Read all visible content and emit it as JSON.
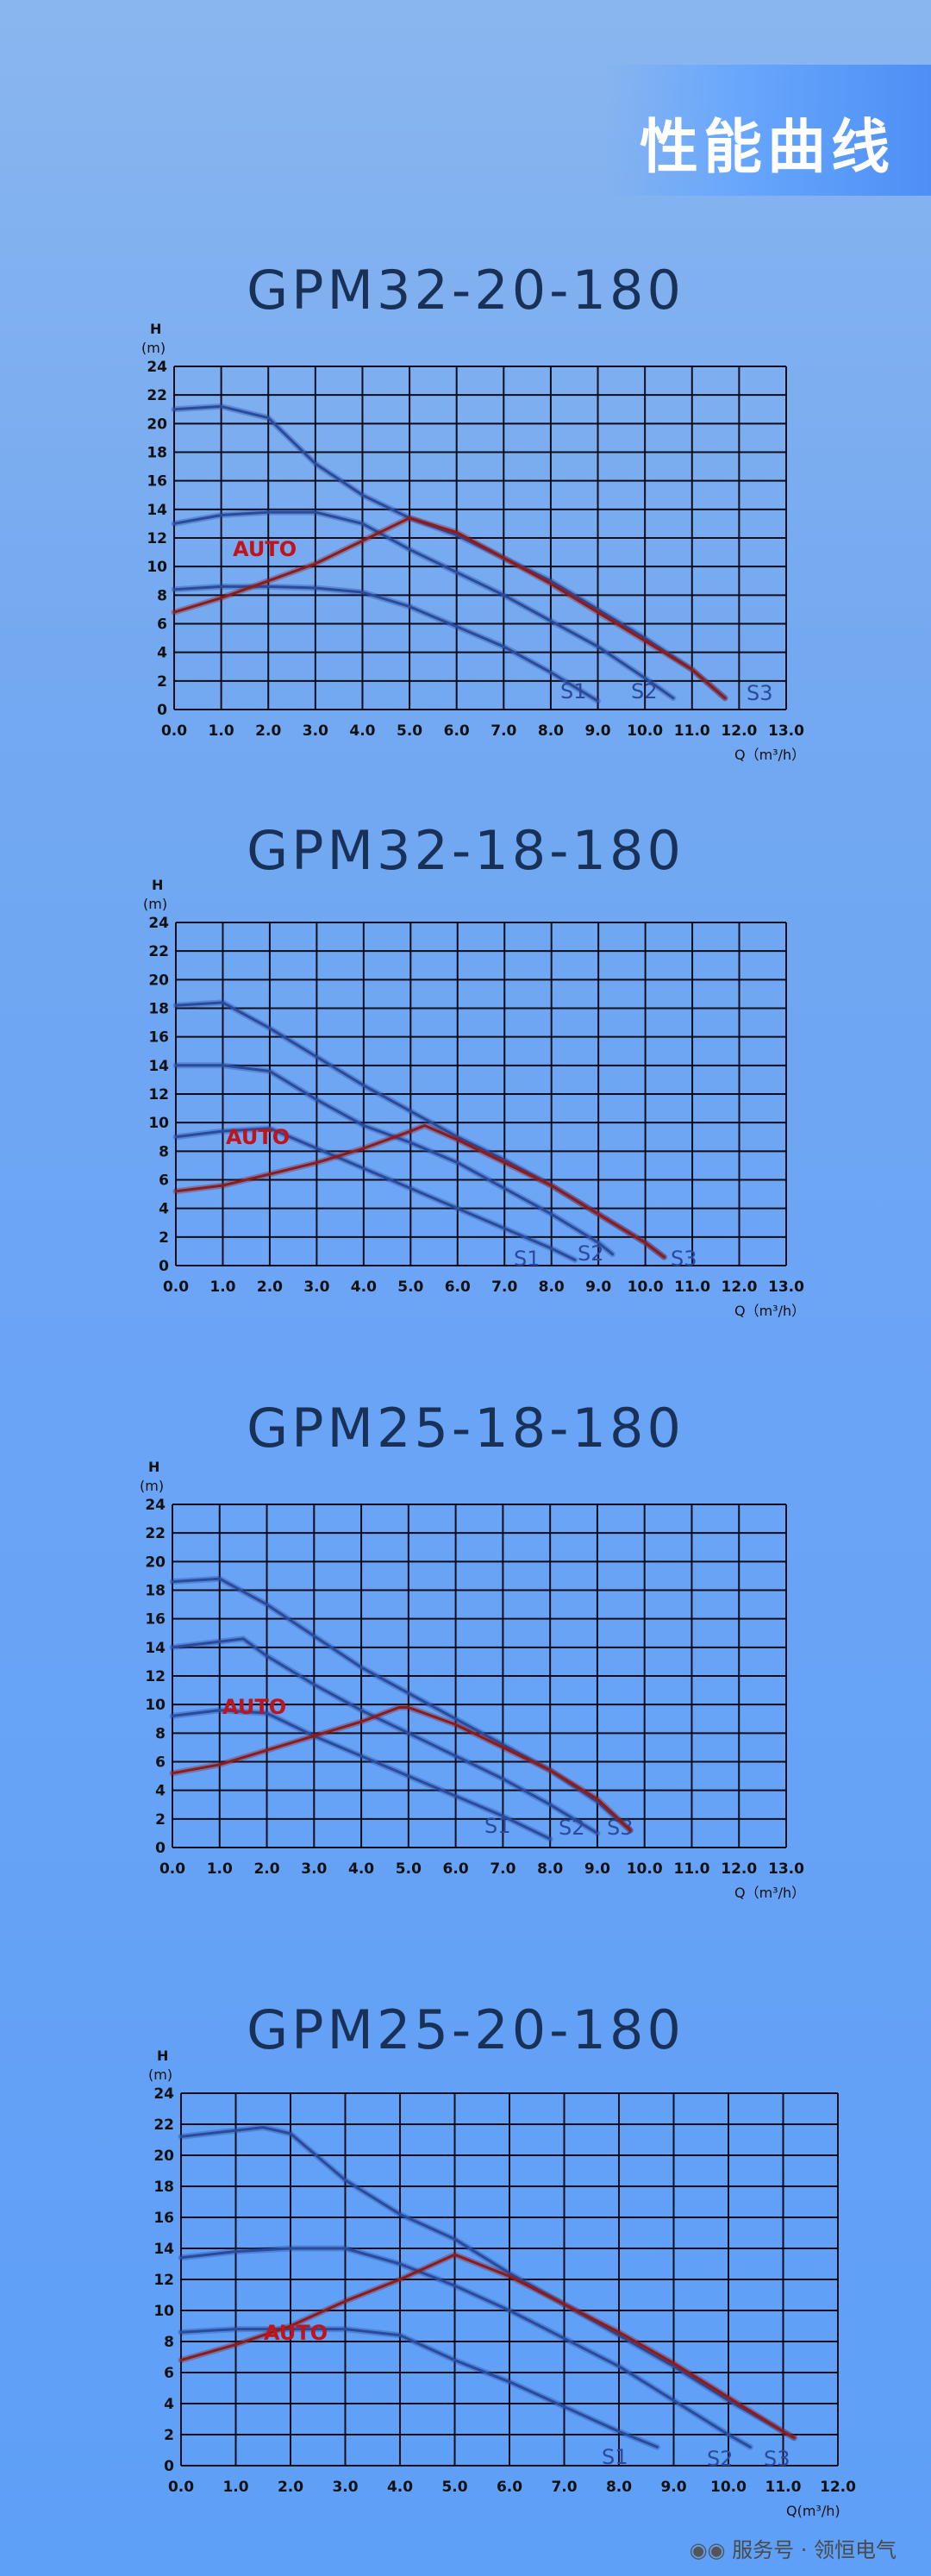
{
  "banner": {
    "title": "性能曲线"
  },
  "watermark": {
    "text": "服务号 · 领恒电气"
  },
  "colors": {
    "background": "#6aa4f6",
    "grid": "#0d0d1a",
    "curve": "#2a4a9c",
    "auto_curve": "#8c1c1c",
    "auto_label": "#c0141a",
    "title": "#1a3157"
  },
  "chart_data": [
    {
      "type": "line",
      "title": "GPM32-20-180",
      "xlabel": "Q（m³/h）",
      "ylabel": "H",
      "ylabel_unit": "(m)",
      "xlim": [
        0,
        13
      ],
      "ylim": [
        0,
        24
      ],
      "x_ticks": [
        "0.0",
        "1.0",
        "2.0",
        "3.0",
        "4.0",
        "5.0",
        "6.0",
        "7.0",
        "8.0",
        "9.0",
        "10.0",
        "11.0",
        "12.0",
        "13.0"
      ],
      "y_ticks": [
        "0",
        "2",
        "4",
        "6",
        "8",
        "10",
        "12",
        "14",
        "16",
        "18",
        "20",
        "22",
        "24"
      ],
      "grid": true,
      "series": [
        {
          "name": "S1",
          "x": [
            0,
            1,
            2,
            3,
            4,
            5,
            6,
            7,
            8,
            9
          ],
          "y": [
            8.4,
            8.6,
            8.6,
            8.5,
            8.2,
            7.2,
            5.8,
            4.4,
            2.6,
            0.6
          ]
        },
        {
          "name": "S2",
          "x": [
            0,
            1,
            2,
            3,
            4,
            5,
            6,
            7,
            8,
            9,
            10,
            10.6
          ],
          "y": [
            13,
            13.6,
            13.8,
            13.8,
            13,
            11.2,
            9.6,
            8,
            6.2,
            4.4,
            2.2,
            0.8
          ]
        },
        {
          "name": "S3",
          "x": [
            0,
            1,
            2,
            3,
            4,
            5,
            6,
            7,
            8,
            9,
            10,
            11,
            11.7
          ],
          "y": [
            21,
            21.2,
            20.4,
            17.2,
            15,
            13.4,
            12.2,
            10.6,
            9,
            7,
            5,
            2.8,
            0.8
          ]
        },
        {
          "name": "AUTO",
          "x": [
            0,
            1,
            2,
            3,
            4,
            5,
            6,
            7,
            8,
            9,
            10,
            11,
            11.7
          ],
          "y": [
            6.8,
            7.8,
            9,
            10.2,
            11.8,
            13.4,
            12.4,
            10.6,
            8.8,
            6.8,
            4.8,
            2.8,
            0.8
          ]
        }
      ]
    },
    {
      "type": "line",
      "title": "GPM32-18-180",
      "xlabel": "Q（m³/h）",
      "ylabel": "H",
      "ylabel_unit": "(m)",
      "xlim": [
        0,
        13
      ],
      "ylim": [
        0,
        24
      ],
      "x_ticks": [
        "0.0",
        "1.0",
        "2.0",
        "3.0",
        "4.0",
        "5.0",
        "6.0",
        "7.0",
        "8.0",
        "9.0",
        "10.0",
        "11.0",
        "12.0",
        "13.0"
      ],
      "y_ticks": [
        "0",
        "2",
        "4",
        "6",
        "8",
        "10",
        "12",
        "14",
        "16",
        "18",
        "20",
        "22",
        "24"
      ],
      "grid": true,
      "series": [
        {
          "name": "S1",
          "x": [
            0,
            1,
            2,
            3,
            4,
            5,
            6,
            7,
            8,
            8.5
          ],
          "y": [
            9,
            9.4,
            9.6,
            8.2,
            6.8,
            5.4,
            4,
            2.6,
            1.2,
            0.4
          ]
        },
        {
          "name": "S2",
          "x": [
            0,
            1,
            2,
            3,
            4,
            5,
            6,
            7,
            8,
            9,
            9.3
          ],
          "y": [
            14,
            14,
            13.6,
            11.6,
            9.8,
            8.6,
            7.2,
            5.4,
            3.6,
            1.6,
            0.8
          ]
        },
        {
          "name": "S3",
          "x": [
            0,
            1,
            2,
            3,
            4,
            5,
            6,
            7,
            8,
            9,
            10,
            10.4
          ],
          "y": [
            18.2,
            18.4,
            16.6,
            14.6,
            12.6,
            10.8,
            9,
            7.4,
            5.6,
            3.6,
            1.6,
            0.6
          ]
        },
        {
          "name": "AUTO",
          "x": [
            0,
            1,
            2,
            3,
            4,
            5,
            5.3,
            6,
            7,
            8,
            9,
            10,
            10.4
          ],
          "y": [
            5.2,
            5.6,
            6.4,
            7.2,
            8.2,
            9.4,
            9.8,
            8.8,
            7.2,
            5.6,
            3.6,
            1.6,
            0.6
          ]
        }
      ]
    },
    {
      "type": "line",
      "title": "GPM25-18-180",
      "xlabel": "Q（m³/h）",
      "ylabel": "H",
      "ylabel_unit": "(m)",
      "xlim": [
        0,
        13
      ],
      "ylim": [
        0,
        24
      ],
      "x_ticks": [
        "0.0",
        "1.0",
        "2.0",
        "3.0",
        "4.0",
        "5.0",
        "6.0",
        "7.0",
        "8.0",
        "9.0",
        "10.0",
        "11.0",
        "12.0",
        "13.0"
      ],
      "y_ticks": [
        "0",
        "2",
        "4",
        "6",
        "8",
        "10",
        "12",
        "14",
        "16",
        "18",
        "20",
        "22",
        "24"
      ],
      "grid": true,
      "series": [
        {
          "name": "S1",
          "x": [
            0,
            1,
            2,
            3,
            4,
            5,
            6,
            7,
            8
          ],
          "y": [
            9.2,
            9.6,
            9.4,
            7.8,
            6.4,
            5,
            3.6,
            2.2,
            0.6
          ]
        },
        {
          "name": "S2",
          "x": [
            0,
            1,
            1.5,
            2,
            3,
            4,
            5,
            6,
            7,
            8,
            9
          ],
          "y": [
            14,
            14.4,
            14.6,
            13.4,
            11.4,
            9.6,
            8,
            6.4,
            4.8,
            3,
            1
          ]
        },
        {
          "name": "S3",
          "x": [
            0,
            1,
            2,
            3,
            4,
            5,
            6,
            7,
            8,
            9,
            9.7
          ],
          "y": [
            18.6,
            18.8,
            17,
            14.8,
            12.6,
            10.8,
            9,
            7.2,
            5.4,
            3.2,
            1.2
          ]
        },
        {
          "name": "AUTO",
          "x": [
            0,
            1,
            2,
            3,
            4,
            4.8,
            5,
            6,
            7,
            8,
            9,
            9.7
          ],
          "y": [
            5.2,
            5.8,
            6.8,
            7.8,
            8.8,
            9.8,
            9.8,
            8.6,
            7,
            5.4,
            3.4,
            1.2
          ]
        }
      ]
    },
    {
      "type": "line",
      "title": "GPM25-20-180",
      "xlabel": "Q(m³/h)",
      "ylabel": "H",
      "ylabel_unit": "(m)",
      "xlim": [
        0,
        12
      ],
      "ylim": [
        0,
        24
      ],
      "x_ticks": [
        "0.0",
        "1.0",
        "2.0",
        "3.0",
        "4.0",
        "5.0",
        "6.0",
        "7.0",
        "8.0",
        "9.0",
        "10.0",
        "11.0",
        "12.0"
      ],
      "y_ticks": [
        "0",
        "2",
        "4",
        "6",
        "8",
        "10",
        "12",
        "14",
        "16",
        "18",
        "20",
        "22",
        "24"
      ],
      "grid": true,
      "series": [
        {
          "name": "S1",
          "x": [
            0,
            1,
            2,
            3,
            4,
            5,
            6,
            7,
            8,
            8.7
          ],
          "y": [
            8.6,
            8.8,
            8.8,
            8.8,
            8.4,
            6.8,
            5.4,
            3.8,
            2.2,
            1.2
          ]
        },
        {
          "name": "S2",
          "x": [
            0,
            1,
            2,
            3,
            4,
            5,
            6,
            7,
            8,
            9,
            10,
            10.4
          ],
          "y": [
            13.4,
            13.8,
            14,
            14,
            13,
            11.6,
            10,
            8.2,
            6.4,
            4.2,
            2,
            1.2
          ]
        },
        {
          "name": "S3",
          "x": [
            0,
            1,
            1.5,
            2,
            3,
            4,
            5,
            6,
            7,
            8,
            9,
            10,
            11,
            11.2
          ],
          "y": [
            21.2,
            21.6,
            21.8,
            21.4,
            18.4,
            16.2,
            14.6,
            12.4,
            10.4,
            8.4,
            6.4,
            4.2,
            2.2,
            1.8
          ]
        },
        {
          "name": "AUTO",
          "x": [
            0,
            1,
            2,
            3,
            4,
            5,
            6,
            7,
            8,
            9,
            10,
            11,
            11.2
          ],
          "y": [
            6.8,
            7.8,
            9,
            10.6,
            12,
            13.6,
            12.2,
            10.4,
            8.6,
            6.6,
            4.4,
            2.2,
            1.8
          ]
        }
      ]
    }
  ]
}
